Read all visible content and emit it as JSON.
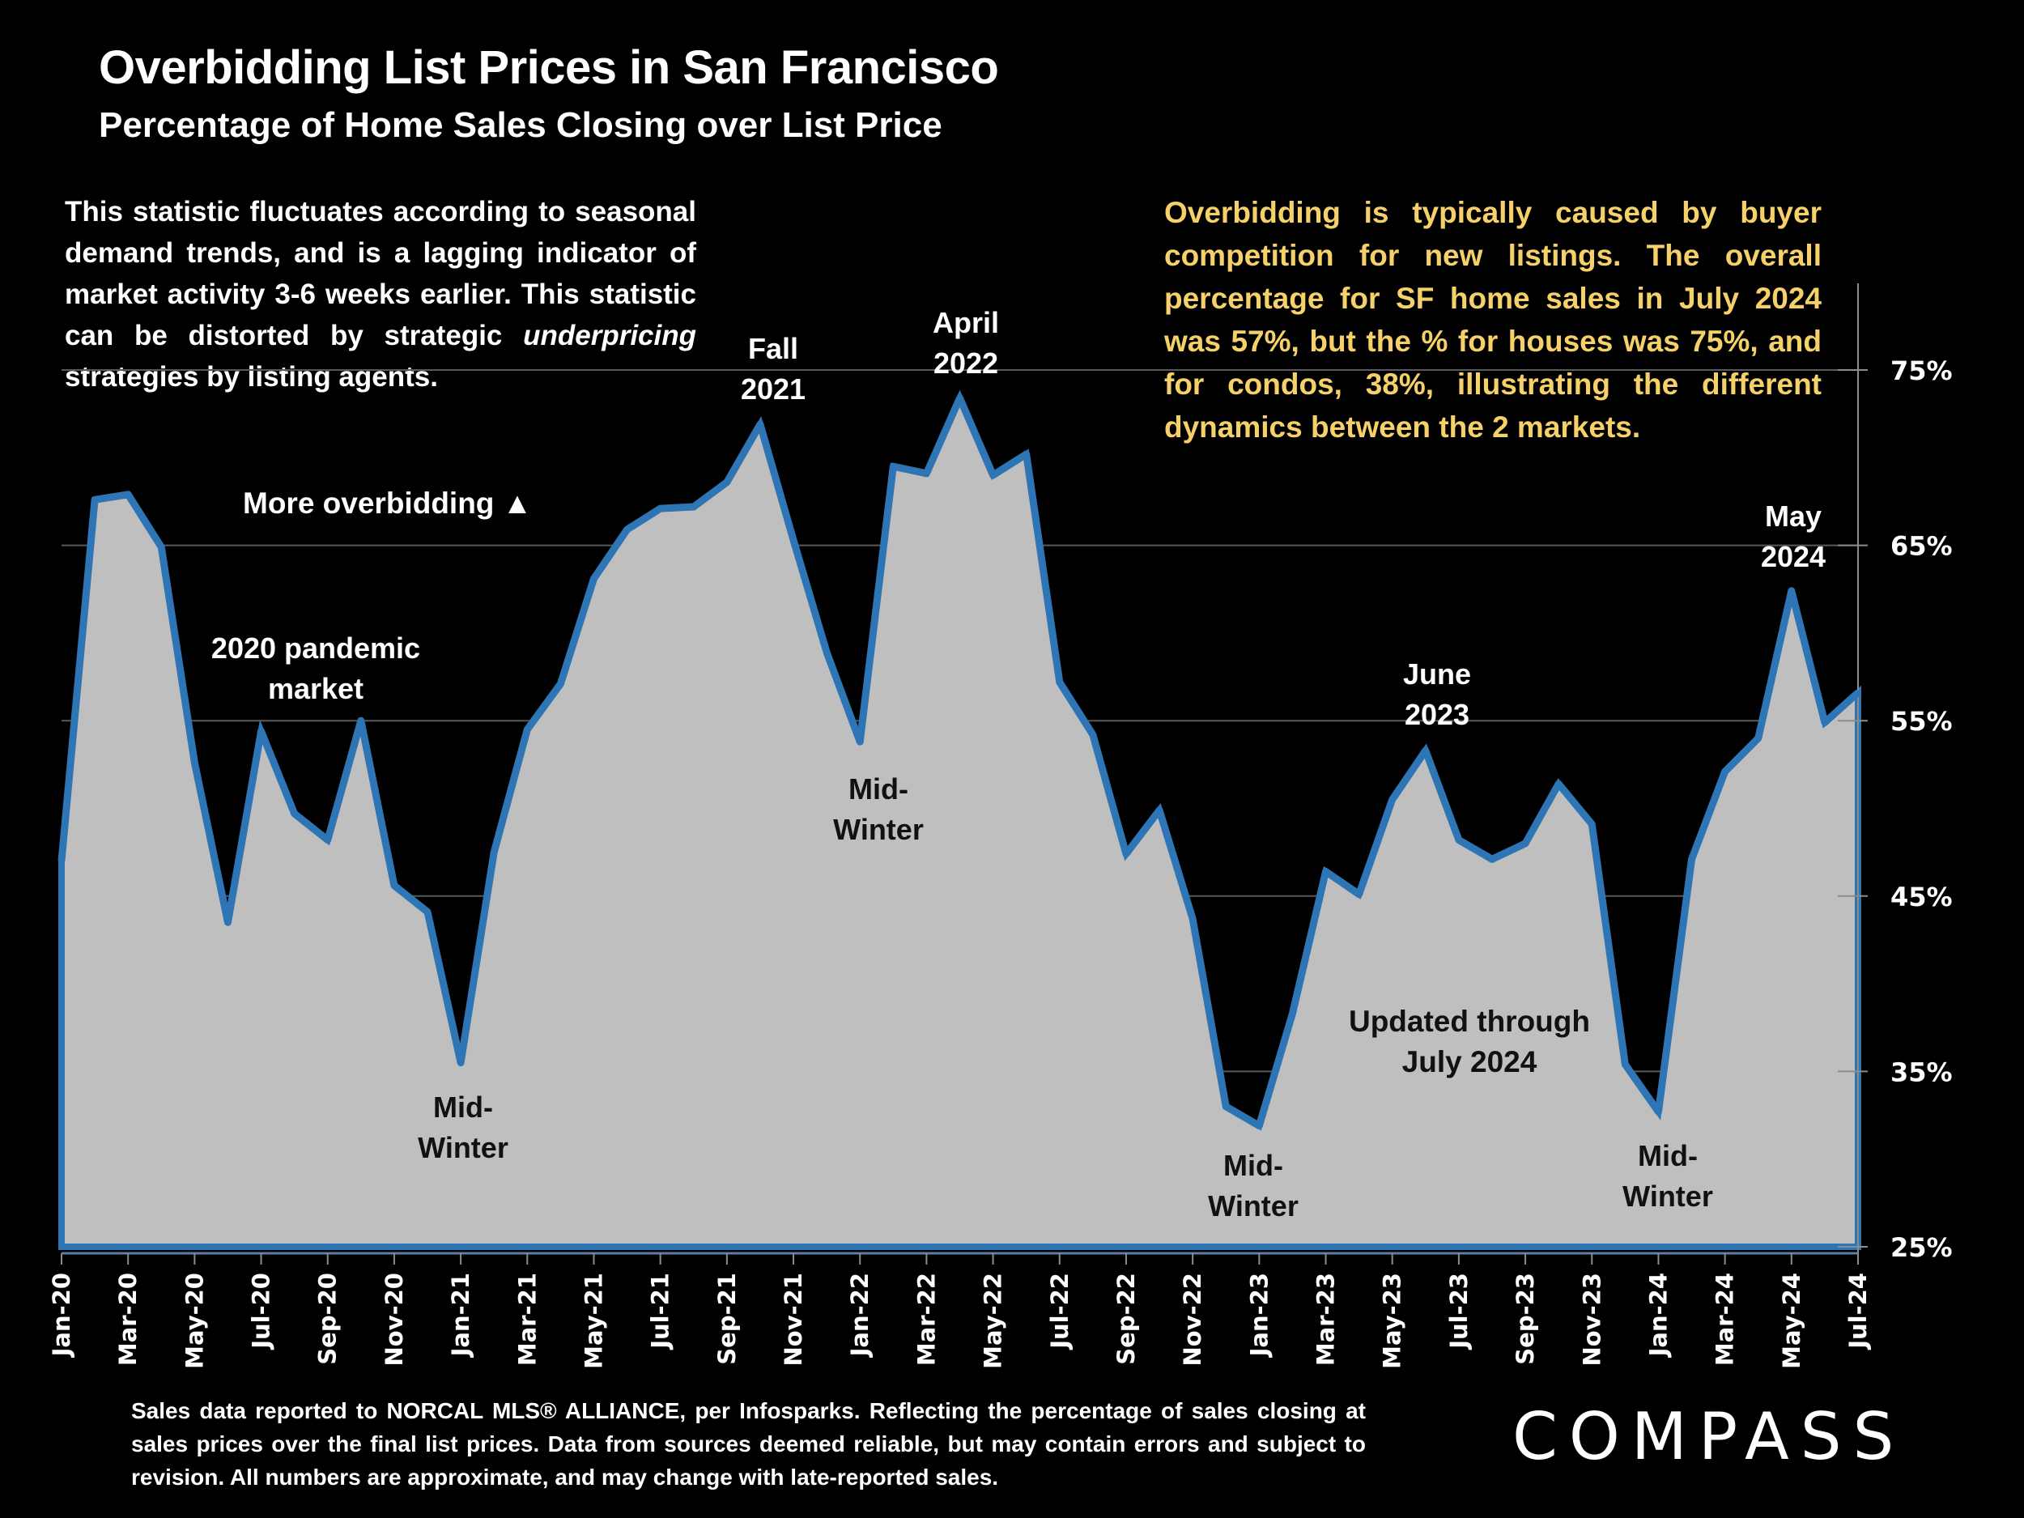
{
  "header": {
    "title": "Overbidding List Prices in San Francisco",
    "subtitle": "Percentage of Home Sales Closing over List Price"
  },
  "notes": {
    "left_part1": "This statistic fluctuates according to seasonal demand trends, and is a lagging indicator of market activity 3-6 weeks earlier. This statistic can be distorted by strategic ",
    "left_italic": "underpricing",
    "left_part2": " strategies by listing agents.",
    "right": "Overbidding is typically caused by buyer competition for new listings. The overall percentage for SF home sales in July 2024 was 57%, but the % for houses was 75%, and for condos, 38%, illustrating the different dynamics between the 2 markets."
  },
  "annotations": {
    "more_overbidding": "More overbidding ▲",
    "pandemic": "2020 pandemic market",
    "fall_2021_line1": "Fall",
    "fall_2021_line2": "2021",
    "april_2022_line1": "April",
    "april_2022_line2": "2022",
    "june_2023_line1": "June",
    "june_2023_line2": "2023",
    "may_2024_line1": "May",
    "may_2024_line2": "2024",
    "midwinter_line1": "Mid-",
    "midwinter_line2": "Winter",
    "updated_line1": "Updated through",
    "updated_line2": "July 2024"
  },
  "footer": {
    "text": "Sales data reported to NORCAL MLS® ALLIANCE, per Infosparks. Reflecting the percentage of sales closing at sales prices over the final list prices. Data from sources deemed reliable, but may contain errors and subject to revision. All numbers are approximate, and may change with late-reported sales.",
    "logo": "COMPASS"
  },
  "colors": {
    "line": "#2e75b6",
    "fill": "#bfbfbf",
    "background": "#000000",
    "highlight_text": "#f6d16a",
    "gridline": "#595959"
  },
  "chart_data": {
    "type": "area",
    "title": "Overbidding List Prices in San Francisco",
    "subtitle": "Percentage of Home Sales Closing over List Price",
    "xlabel": "",
    "ylabel": "",
    "y_axis_position": "right",
    "ylim": [
      25,
      75
    ],
    "y_ticks": [
      "25%",
      "35%",
      "45%",
      "55%",
      "65%",
      "75%"
    ],
    "y_tick_values": [
      25,
      35,
      45,
      55,
      65,
      75
    ],
    "grid": true,
    "x_tick_labels": [
      "Jan-20",
      "Mar-20",
      "May-20",
      "Jul-20",
      "Sep-20",
      "Nov-20",
      "Jan-21",
      "Mar-21",
      "May-21",
      "Jul-21",
      "Sep-21",
      "Nov-21",
      "Jan-22",
      "Mar-22",
      "May-22",
      "Jul-22",
      "Sep-22",
      "Nov-22",
      "Jan-23",
      "Mar-23",
      "May-23",
      "Jul-23",
      "Sep-23",
      "Nov-23",
      "Jan-24",
      "Mar-24",
      "May-24",
      "Jul-24"
    ],
    "x": [
      "Jan-20",
      "Feb-20",
      "Mar-20",
      "Apr-20",
      "May-20",
      "Jun-20",
      "Jul-20",
      "Aug-20",
      "Sep-20",
      "Oct-20",
      "Nov-20",
      "Dec-20",
      "Jan-21",
      "Feb-21",
      "Mar-21",
      "Apr-21",
      "May-21",
      "Jun-21",
      "Jul-21",
      "Aug-21",
      "Sep-21",
      "Oct-21",
      "Nov-21",
      "Dec-21",
      "Jan-22",
      "Feb-22",
      "Mar-22",
      "Apr-22",
      "May-22",
      "Jun-22",
      "Jul-22",
      "Aug-22",
      "Sep-22",
      "Oct-22",
      "Nov-22",
      "Dec-22",
      "Jan-23",
      "Feb-23",
      "Mar-23",
      "Apr-23",
      "May-23",
      "Jun-23",
      "Jul-23",
      "Aug-23",
      "Sep-23",
      "Oct-23",
      "Nov-23",
      "Dec-23",
      "Jan-24",
      "Feb-24",
      "Mar-24",
      "Apr-24",
      "May-24",
      "Jun-24",
      "Jul-24"
    ],
    "series": [
      {
        "name": "% of Home Sales Closing over List Price",
        "values": [
          47.0,
          67.6,
          67.9,
          64.9,
          52.6,
          43.5,
          54.4,
          49.7,
          48.2,
          55.0,
          45.6,
          44.1,
          35.5,
          47.5,
          54.5,
          57.1,
          63.1,
          65.9,
          67.1,
          67.2,
          68.6,
          71.9,
          65.3,
          58.9,
          53.8,
          69.5,
          69.1,
          73.4,
          69.0,
          70.2,
          57.2,
          54.2,
          47.4,
          49.9,
          43.7,
          33.0,
          31.9,
          38.3,
          46.4,
          45.1,
          50.5,
          53.3,
          48.2,
          47.1,
          48.0,
          51.4,
          49.1,
          35.4,
          32.7,
          47.1,
          52.1,
          54.0,
          62.4,
          54.9,
          56.6
        ]
      }
    ]
  }
}
